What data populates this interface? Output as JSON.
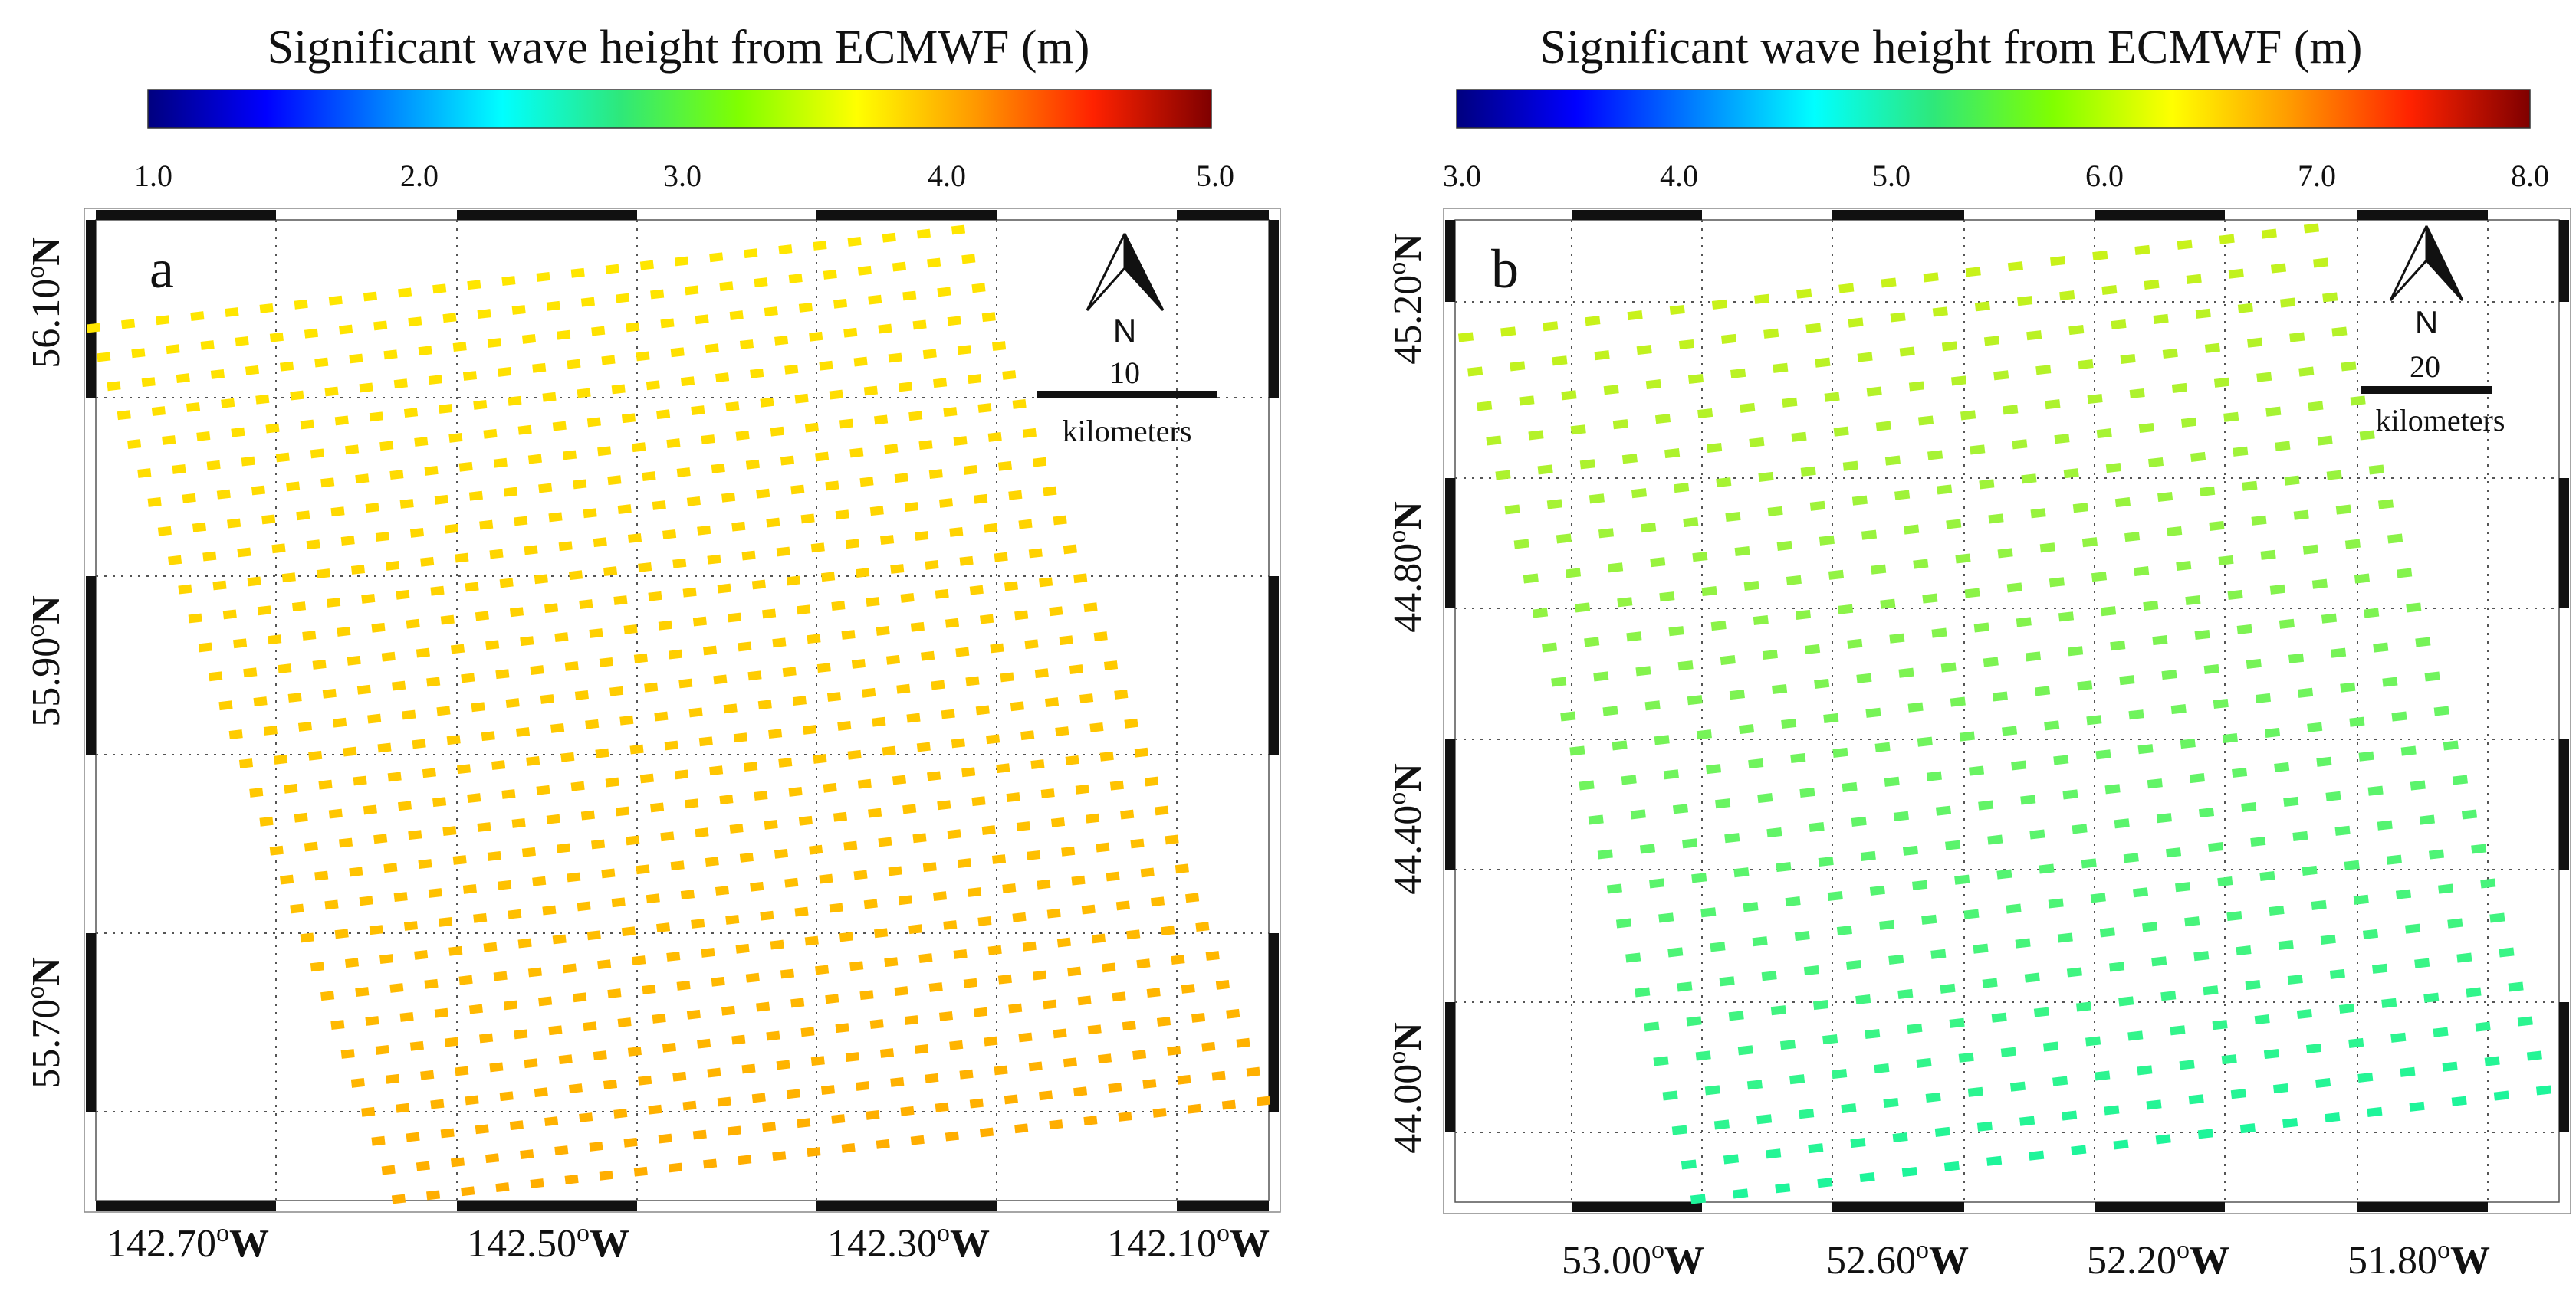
{
  "chart_data": [
    {
      "type": "scatter",
      "panel_label": "a",
      "title": "Significant wave height from ECMWF (m)",
      "colorbar": {
        "min": 1.0,
        "max": 5.0,
        "ticks": [
          "1.0",
          "2.0",
          "3.0",
          "4.0",
          "5.0"
        ],
        "colors": [
          "#00007f",
          "#0000ff",
          "#0080ff",
          "#00ffff",
          "#2ee87a",
          "#80ff00",
          "#ffff00",
          "#ff9900",
          "#ff2200",
          "#7f0000"
        ]
      },
      "x_ticks": [
        "142.70",
        "142.50",
        "142.30",
        "142.10"
      ],
      "y_ticks": [
        "56.10",
        "55.90",
        "55.70"
      ],
      "lon_suffix": "W",
      "lat_suffix": "N",
      "degree_symbol": "o",
      "x_range_deg_w": [
        142.72,
        142.05
      ],
      "y_range_deg_n": [
        55.62,
        56.16
      ],
      "grid": true,
      "north_arrow_label": "N",
      "scale_bar": {
        "value": "10",
        "unit": "kilometers"
      },
      "points_grid": {
        "rows": 31,
        "cols": 26
      },
      "value_range": [
        3.85,
        4.05
      ],
      "point_colors": {
        "north": "#ffe600",
        "south": "#ffae00"
      }
    },
    {
      "type": "scatter",
      "panel_label": "b",
      "title": "Significant wave height from ECMWF (m)",
      "colorbar": {
        "min": 3.0,
        "max": 8.0,
        "ticks": [
          "3.0",
          "4.0",
          "5.0",
          "6.0",
          "7.0",
          "8.0"
        ],
        "colors": [
          "#00007f",
          "#0000ff",
          "#0080ff",
          "#00ffff",
          "#2ee87a",
          "#80ff00",
          "#ffff00",
          "#ff9900",
          "#ff2200",
          "#7f0000"
        ]
      },
      "x_ticks": [
        "53.00",
        "52.60",
        "52.20",
        "51.80"
      ],
      "y_ticks": [
        "45.20",
        "44.80",
        "44.40",
        "44.00"
      ],
      "lon_suffix": "W",
      "lat_suffix": "N",
      "degree_symbol": "o",
      "x_range_deg_w": [
        53.35,
        51.62
      ],
      "y_range_deg_n": [
        43.8,
        45.35
      ],
      "grid": true,
      "north_arrow_label": "N",
      "scale_bar": {
        "value": "20",
        "unit": "kilometers"
      },
      "points_grid": {
        "rows": 26,
        "cols": 21
      },
      "value_range": [
        5.2,
        5.9
      ],
      "point_colors": {
        "north": "#c8f21a",
        "south": "#1ef59a"
      }
    }
  ]
}
